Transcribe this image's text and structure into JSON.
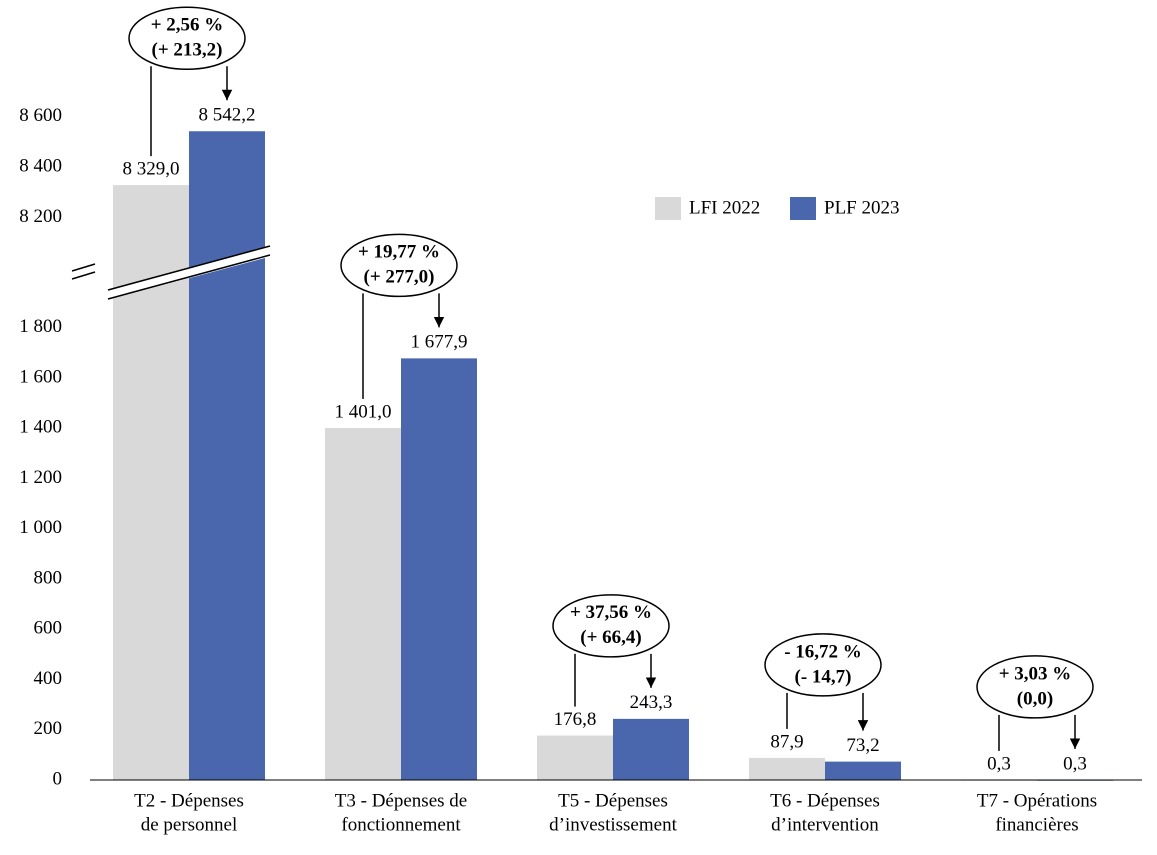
{
  "chart_data": {
    "type": "bar",
    "categories": [
      [
        "T2 - Dépenses",
        "de personnel"
      ],
      [
        "T3 - Dépenses de",
        "fonctionnement"
      ],
      [
        "T5 - Dépenses",
        "d’investissement"
      ],
      [
        "T6 - Dépenses",
        "d’intervention"
      ],
      [
        "T7 - Opérations",
        "financières"
      ]
    ],
    "series": [
      {
        "name": "LFI 2022",
        "color": "#d9d9d9",
        "values": [
          8329.0,
          1401.0,
          176.8,
          87.9,
          0.3
        ],
        "value_labels": [
          "8 329,0",
          "1 401,0",
          "176,8",
          "87,9",
          "0,3"
        ]
      },
      {
        "name": "PLF 2023",
        "color": "#4a66ac",
        "values": [
          8542.2,
          1677.9,
          243.3,
          73.2,
          0.3
        ],
        "value_labels": [
          "8 542,2",
          "1 677,9",
          "243,3",
          "73,2",
          "0,3"
        ]
      }
    ],
    "annotations": [
      [
        "+ 2,56 %",
        "(+ 213,2)"
      ],
      [
        "+ 19,77 %",
        "(+ 277,0)"
      ],
      [
        "+ 37,56 %",
        "(+ 66,4)"
      ],
      [
        "- 16,72 %",
        "(- 14,7)"
      ],
      [
        "+ 3,03 %",
        "(0,0)"
      ]
    ],
    "ylim_segments": [
      [
        0,
        1950
      ],
      [
        8100,
        8650
      ]
    ],
    "yticks": [
      0,
      200,
      400,
      600,
      800,
      {
        "value": 1000,
        "label": "1 000"
      },
      {
        "value": 1200,
        "label": "1 200"
      },
      {
        "value": 1400,
        "label": "1 400"
      },
      {
        "value": 1600,
        "label": "1 600"
      },
      {
        "value": 1800,
        "label": "1 800"
      },
      {
        "value": 8200,
        "label": "8 200"
      },
      {
        "value": 8400,
        "label": "8 400"
      },
      {
        "value": 8600,
        "label": "8 600"
      }
    ],
    "legend": "top-right"
  }
}
